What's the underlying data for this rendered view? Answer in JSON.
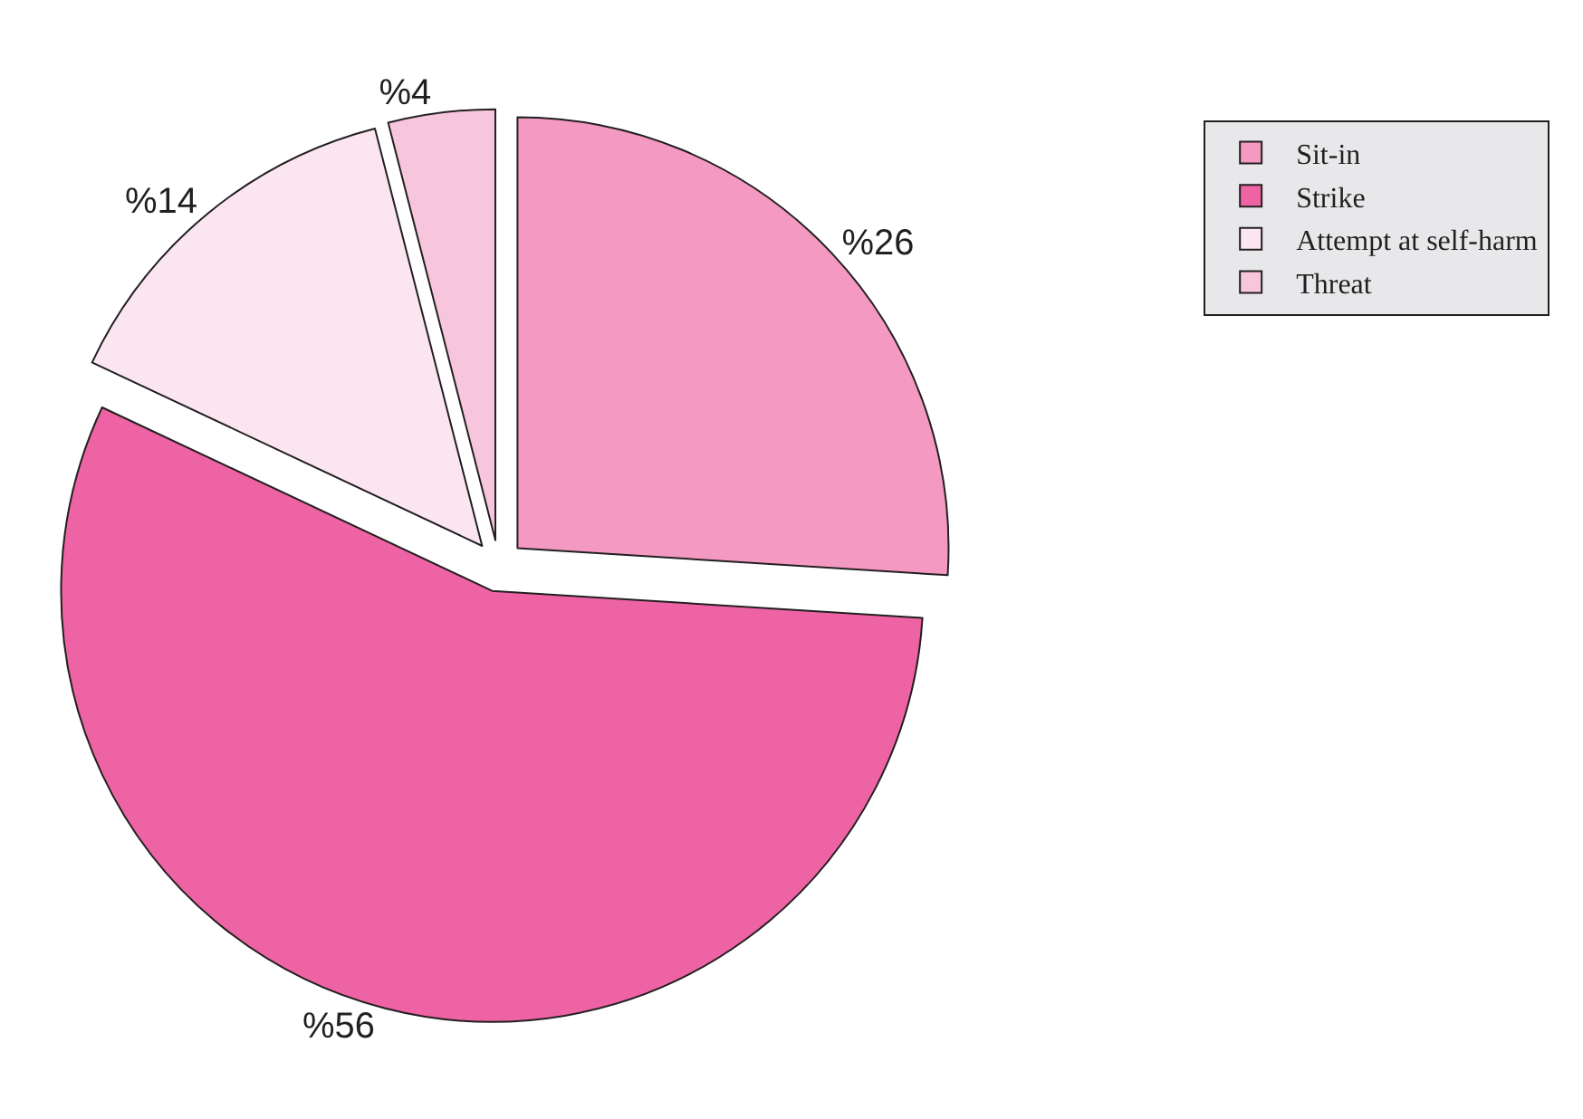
{
  "chart_data": {
    "type": "pie",
    "categories": [
      "Sit-in",
      "Strike",
      "Attempt at self-harm",
      "Threat"
    ],
    "values": [
      26,
      56,
      14,
      4
    ],
    "colors": [
      "#f399c2",
      "#ee63a4",
      "#fbe5f0",
      "#f7c6dd"
    ],
    "value_labels": [
      "%26",
      "%56",
      "%14",
      "%4"
    ],
    "legend": "top right"
  }
}
